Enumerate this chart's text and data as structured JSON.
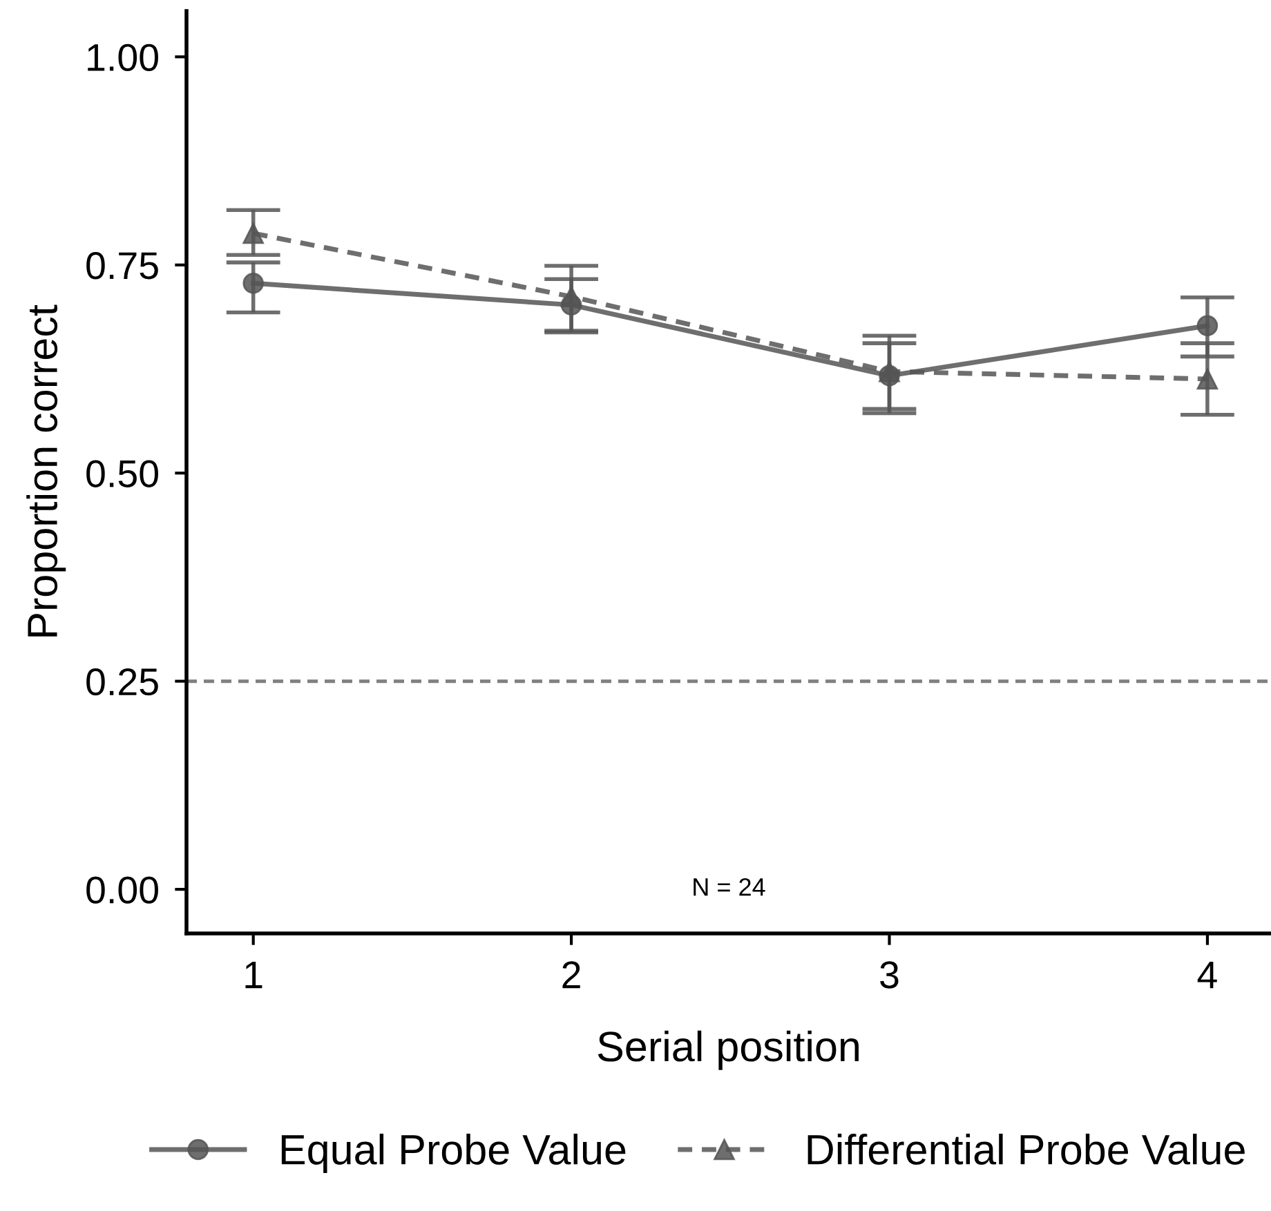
{
  "chart_data": {
    "type": "line",
    "xlabel": "Serial position",
    "ylabel": "Proportion correct",
    "x": [
      1,
      2,
      3,
      4
    ],
    "series": [
      {
        "name": "Equal Probe Value",
        "color": "#555555",
        "marker": "circle",
        "line_style": "solid",
        "values": [
          0.728,
          0.702,
          0.617,
          0.677
        ],
        "errors": [
          [
            0.693,
            0.753
          ],
          [
            0.669,
            0.733
          ],
          [
            0.572,
            0.656
          ],
          [
            0.64,
            0.711
          ]
        ]
      },
      {
        "name": "Differential Probe Value",
        "color": "#555555",
        "marker": "triangle",
        "line_style": "dashed",
        "values": [
          0.788,
          0.712,
          0.622,
          0.613
        ],
        "errors": [
          [
            0.762,
            0.816
          ],
          [
            0.671,
            0.749
          ],
          [
            0.577,
            0.665
          ],
          [
            0.57,
            0.656
          ]
        ]
      }
    ],
    "xlim": [
      0.79,
      4.2
    ],
    "ylim": [
      -0.053,
      1.055
    ],
    "xticks": [
      1,
      2,
      3,
      4
    ],
    "yticks": [
      {
        "value": 0,
        "label": "0.00"
      },
      {
        "value": 0.25,
        "label": "0.25"
      },
      {
        "value": 0.5,
        "label": "0.50"
      },
      {
        "value": 0.75,
        "label": "0.75"
      },
      {
        "value": 1,
        "label": "1.00"
      }
    ],
    "ref_lines": [
      {
        "axis": "y",
        "value": 0.25,
        "label": null,
        "color": "#808080",
        "line_style": "dashed"
      }
    ],
    "annotations": [
      "N = 24"
    ],
    "grid": false,
    "legend": "bottom"
  }
}
